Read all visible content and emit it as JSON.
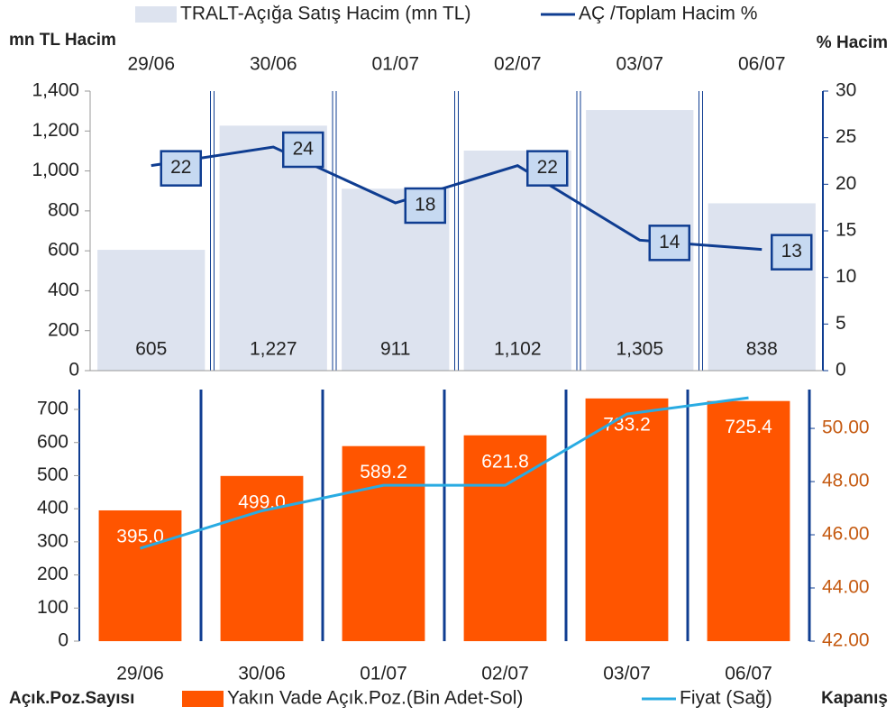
{
  "chart_data": [
    {
      "type": "combo",
      "y_axis_label": "mn TL Hacim",
      "y2_axis_label": "% Hacim",
      "categories": [
        "29/06",
        "30/06",
        "01/07",
        "02/07",
        "03/07",
        "06/07"
      ],
      "series": [
        {
          "name": "TRALT-Açığa Satış Hacim (mn TL)",
          "type": "bar",
          "color": "#dde3ef",
          "values": [
            605,
            1227,
            911,
            1102,
            1305,
            838
          ],
          "value_labels": [
            "605",
            "1,227",
            "911",
            "1,102",
            "1,305",
            "838"
          ]
        },
        {
          "name": "AÇ /Toplam Hacim %",
          "type": "line",
          "axis": "y2",
          "color": "#0f3d91",
          "values": [
            22,
            24,
            18,
            22,
            14,
            13
          ]
        }
      ],
      "ylim": [
        0,
        1400
      ],
      "yticks": [
        0,
        200,
        400,
        600,
        800,
        {
          "value": 1000,
          "label": "1,000"
        },
        {
          "value": 1200,
          "label": "1,200"
        },
        {
          "value": 1400,
          "label": "1,400"
        }
      ],
      "y2lim": [
        0,
        30
      ],
      "y2ticks": [
        0,
        5,
        10,
        15,
        20,
        25,
        30
      ]
    },
    {
      "type": "combo",
      "y_axis_label": "Açık.Poz.Sayısı",
      "y2_axis_label": "Kapanış",
      "categories": [
        "29/06",
        "30/06",
        "01/07",
        "02/07",
        "03/07",
        "06/07"
      ],
      "series": [
        {
          "name": "Yakın Vade Açık.Poz.(Bin Adet-Sol)",
          "type": "bar",
          "color": "#ff5500",
          "values": [
            395.0,
            499.0,
            589.2,
            621.8,
            733.2,
            725.4
          ],
          "value_labels": [
            "395.0",
            "499.0",
            "589.2",
            "621.8",
            "733.2",
            "725.4"
          ]
        },
        {
          "name": "Fiyat (Sağ)",
          "type": "line",
          "axis": "y2",
          "color": "#29abe2",
          "values": [
            45.49,
            46.9,
            47.86,
            47.86,
            50.54,
            51.15
          ]
        }
      ],
      "ylim": [
        0,
        760
      ],
      "yticks": [
        0,
        100,
        200,
        300,
        400,
        500,
        600,
        700
      ],
      "y2lim": [
        42,
        51.46
      ],
      "y2ticks": [
        {
          "value": 42,
          "label": "42.00"
        },
        {
          "value": 44,
          "label": "44.00"
        },
        {
          "value": 46,
          "label": "46.00"
        },
        {
          "value": 48,
          "label": "48.00"
        },
        {
          "value": 50,
          "label": "50.00"
        }
      ]
    }
  ]
}
